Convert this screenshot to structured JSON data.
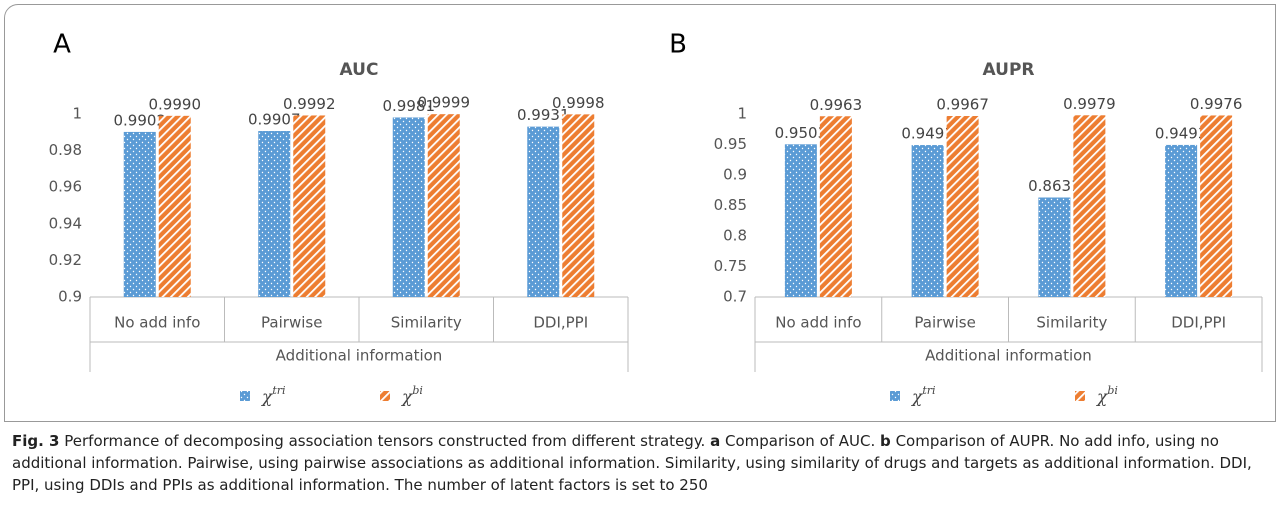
{
  "chart_data": [
    {
      "type": "bar",
      "panel": "A",
      "title": "AUC",
      "x_label": "Additional information",
      "categories": [
        "No add info",
        "Pairwise",
        "Similarity",
        "DDI,PPI"
      ],
      "series": [
        {
          "name": "χ^tri",
          "color": "#5b9bd5",
          "pattern": "dots",
          "values": [
            0.9902,
            0.9907,
            0.9981,
            0.9931
          ],
          "value_labels": [
            "0.9902",
            "0.9907",
            "0.9981",
            "0.9931"
          ]
        },
        {
          "name": "χ^bi",
          "color": "#ed7d31",
          "pattern": "hatch",
          "values": [
            0.999,
            0.9992,
            0.9999,
            0.9998
          ],
          "value_labels": [
            "0.9990",
            "0.9992",
            "0.9999",
            "0.9998"
          ]
        }
      ],
      "ylim": [
        0.9,
        1
      ],
      "yticks": [
        0.9,
        0.92,
        0.94,
        0.96,
        0.98,
        1
      ],
      "grid": false,
      "legend": "bottom"
    },
    {
      "type": "bar",
      "panel": "B",
      "title": "AUPR",
      "x_label": "Additional information",
      "categories": [
        "No add info",
        "Pairwise",
        "Similarity",
        "DDI,PPI"
      ],
      "series": [
        {
          "name": "χ^tri",
          "color": "#5b9bd5",
          "pattern": "dots",
          "values": [
            0.9503,
            0.9491,
            0.8631,
            0.9493
          ]
        },
        {
          "name": "χ^bi",
          "color": "#ed7d31",
          "pattern": "hatch",
          "values": [
            0.9963,
            0.9967,
            0.9979,
            0.9976
          ]
        }
      ],
      "ylim": [
        0.7,
        1
      ],
      "yticks": [
        0.7,
        0.75,
        0.8,
        0.85,
        0.9,
        0.95,
        1
      ],
      "grid": false,
      "legend": "bottom"
    }
  ],
  "caption": [
    {
      "text": "Fig. 3",
      "bold": true
    },
    {
      "text": " Performance of decomposing association tensors constructed from different strategy. "
    },
    {
      "text": "a",
      "bold": true
    },
    {
      "text": " Comparison of AUC. "
    },
    {
      "text": "b",
      "bold": true
    },
    {
      "text": " Comparison of AUPR. No add info, using no additional information. Pairwise, using pairwise associations as additional information. Similarity, using similarity of drugs and targets as additional information. DDI, PPI, using DDIs and PPIs as additional information. The number of latent factors is set to 250"
    }
  ]
}
